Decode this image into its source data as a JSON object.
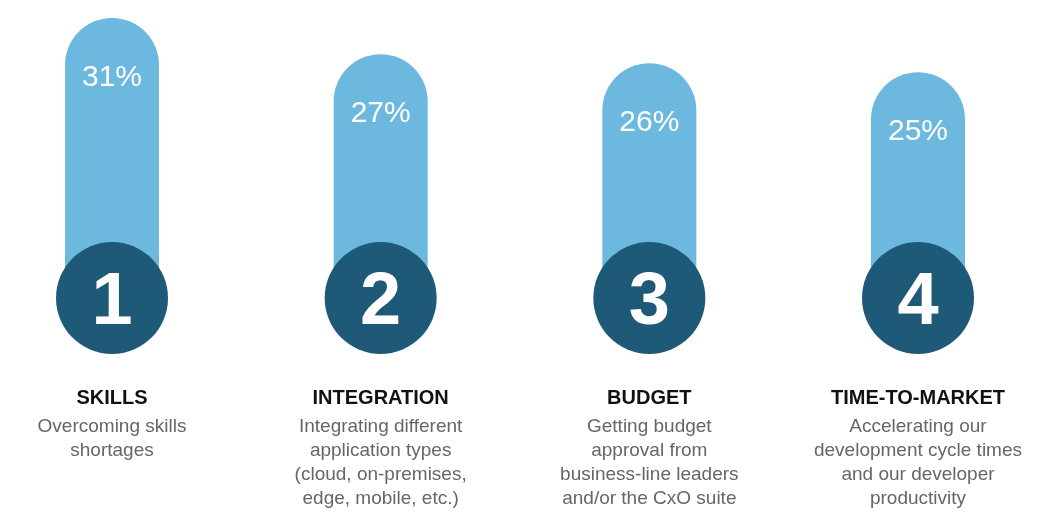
{
  "chart_data": {
    "type": "bar",
    "categories": [
      "SKILLS",
      "INTEGRATION",
      "BUDGET",
      "TIME-TO-MARKET"
    ],
    "values": [
      31,
      27,
      26,
      25
    ],
    "color": "#6cb8de",
    "value_labels": [
      "31%",
      "27%",
      "26%",
      "25%"
    ],
    "annotations": [
      {
        "text": "1",
        "x": "SKILLS",
        "y": 0
      },
      {
        "text": "2",
        "x": "INTEGRATION",
        "y": 0
      },
      {
        "text": "3",
        "x": "BUDGET",
        "y": 0
      },
      {
        "text": "4",
        "x": "TIME-TO-MARKET",
        "y": 0
      },
      "Overcoming skills\nshortages",
      "Integrating different\napplication types\n(cloud, on-premises,\nedge, mobile, etc.)",
      "Getting budget\napproval from\nbusiness-line leaders\nand/or the CxO suite",
      "Accelerating our\ndevelopment cycle times\nand our developer\nproductivity"
    ]
  }
}
